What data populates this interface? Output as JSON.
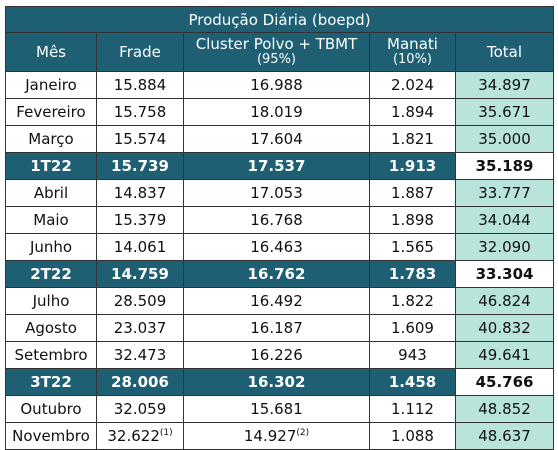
{
  "table": {
    "title": "Produção Diária (boepd)",
    "headers": [
      {
        "main": "Mês",
        "sub": ""
      },
      {
        "main": "Frade",
        "sub": ""
      },
      {
        "main": "Cluster Polvo + TBMT",
        "sub": "(95%)"
      },
      {
        "main": "Manati",
        "sub": "(10%)"
      },
      {
        "main": "Total",
        "sub": ""
      }
    ],
    "rows": [
      {
        "type": "month",
        "label": "Janeiro",
        "frade": "15.884",
        "frade_note": "",
        "polvo": "16.988",
        "polvo_note": "",
        "manati": "2.024",
        "total": "34.897"
      },
      {
        "type": "month",
        "label": "Fevereiro",
        "frade": "15.758",
        "frade_note": "",
        "polvo": "18.019",
        "polvo_note": "",
        "manati": "1.894",
        "total": "35.671"
      },
      {
        "type": "month",
        "label": "Março",
        "frade": "15.574",
        "frade_note": "",
        "polvo": "17.604",
        "polvo_note": "",
        "manati": "1.821",
        "total": "35.000"
      },
      {
        "type": "quarter",
        "label": "1T22",
        "frade": "15.739",
        "frade_note": "",
        "polvo": "17.537",
        "polvo_note": "",
        "manati": "1.913",
        "total": "35.189"
      },
      {
        "type": "month",
        "label": "Abril",
        "frade": "14.837",
        "frade_note": "",
        "polvo": "17.053",
        "polvo_note": "",
        "manati": "1.887",
        "total": "33.777"
      },
      {
        "type": "month",
        "label": "Maio",
        "frade": "15.379",
        "frade_note": "",
        "polvo": "16.768",
        "polvo_note": "",
        "manati": "1.898",
        "total": "34.044"
      },
      {
        "type": "month",
        "label": "Junho",
        "frade": "14.061",
        "frade_note": "",
        "polvo": "16.463",
        "polvo_note": "",
        "manati": "1.565",
        "total": "32.090"
      },
      {
        "type": "quarter",
        "label": "2T22",
        "frade": "14.759",
        "frade_note": "",
        "polvo": "16.762",
        "polvo_note": "",
        "manati": "1.783",
        "total": "33.304"
      },
      {
        "type": "month",
        "label": "Julho",
        "frade": "28.509",
        "frade_note": "",
        "polvo": "16.492",
        "polvo_note": "",
        "manati": "1.822",
        "total": "46.824"
      },
      {
        "type": "month",
        "label": "Agosto",
        "frade": "23.037",
        "frade_note": "",
        "polvo": "16.187",
        "polvo_note": "",
        "manati": "1.609",
        "total": "40.832"
      },
      {
        "type": "month",
        "label": "Setembro",
        "frade": "32.473",
        "frade_note": "",
        "polvo": "16.226",
        "polvo_note": "",
        "manati": "943",
        "total": "49.641"
      },
      {
        "type": "quarter",
        "label": "3T22",
        "frade": "28.006",
        "frade_note": "",
        "polvo": "16.302",
        "polvo_note": "",
        "manati": "1.458",
        "total": "45.766"
      },
      {
        "type": "month",
        "label": "Outubro",
        "frade": "32.059",
        "frade_note": "",
        "polvo": "15.681",
        "polvo_note": "",
        "manati": "1.112",
        "total": "48.852"
      },
      {
        "type": "month",
        "label": "Novembro",
        "frade": "32.622",
        "frade_note": "(1)",
        "polvo": "14.927",
        "polvo_note": "(2)",
        "manati": "1.088",
        "total": "48.637"
      }
    ]
  }
}
